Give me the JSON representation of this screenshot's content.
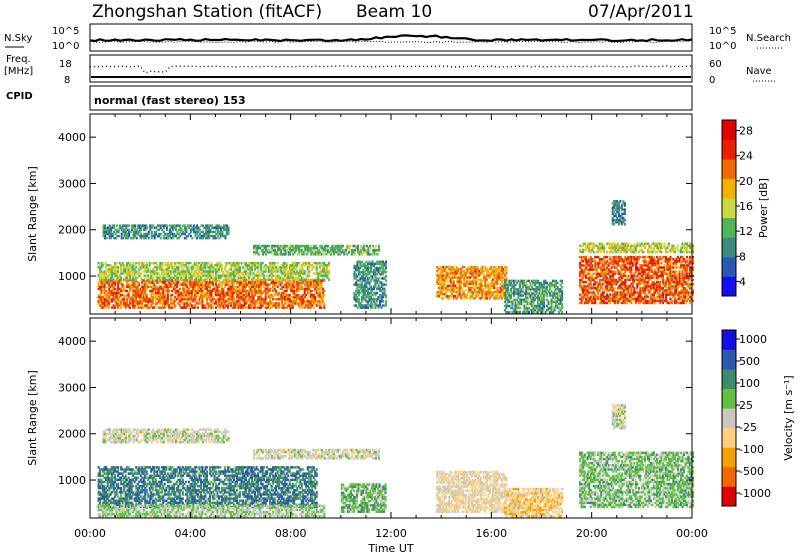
{
  "header": {
    "station": "Zhongshan Station (fitACF)",
    "beam": "Beam 10",
    "date": "07/Apr/2011"
  },
  "top_panels": {
    "nsky_label": "N.Sky",
    "nsearch_label": "N.Search",
    "freq_label_1": "Freq.",
    "freq_label_2": "[MHz]",
    "nave_label": "Nave",
    "cpid_label": "CPID",
    "cpid_text": "normal (fast stereo) 153",
    "count_ticks": [
      "10^5",
      "10^0"
    ],
    "freq_ticks": [
      "18",
      "8"
    ],
    "nave_ticks": [
      "60",
      "0"
    ]
  },
  "chart_data": [
    {
      "type": "heatmap",
      "name": "power",
      "ylabel": "Slant Range [km]",
      "xlabel": "",
      "ylim": [
        180,
        4500
      ],
      "yticks": [
        "1000",
        "2000",
        "3000",
        "4000"
      ],
      "colorbar": {
        "label": "Power [dB]",
        "ticks": [
          "28",
          "24",
          "20",
          "16",
          "12",
          "8",
          "4"
        ],
        "range": [
          0,
          30
        ],
        "colors": [
          "#1010f0",
          "#2a58b0",
          "#3f8a7e",
          "#4fb45a",
          "#c8d840",
          "#f5b000",
          "#f06a00",
          "#e82000",
          "#e00000"
        ]
      },
      "echo_regions": [
        {
          "t0": 0.3,
          "t1": 9.3,
          "r0": 300,
          "r1": 900,
          "level": 22
        },
        {
          "t0": 0.3,
          "t1": 9.5,
          "r0": 900,
          "r1": 1300,
          "level": 14
        },
        {
          "t0": 0.5,
          "t1": 5.5,
          "r0": 1800,
          "r1": 2100,
          "level": 9
        },
        {
          "t0": 6.5,
          "t1": 11.5,
          "r0": 1450,
          "r1": 1650,
          "level": 11
        },
        {
          "t0": 10.5,
          "t1": 11.8,
          "r0": 300,
          "r1": 1300,
          "level": 9
        },
        {
          "t0": 13.8,
          "t1": 16.6,
          "r0": 500,
          "r1": 1200,
          "level": 20
        },
        {
          "t0": 16.5,
          "t1": 18.8,
          "r0": 200,
          "r1": 900,
          "level": 10
        },
        {
          "t0": 19.5,
          "t1": 24.0,
          "r0": 400,
          "r1": 1400,
          "level": 23
        },
        {
          "t0": 19.5,
          "t1": 24.0,
          "r0": 1500,
          "r1": 1700,
          "level": 15
        },
        {
          "t0": 20.8,
          "t1": 21.3,
          "r0": 2100,
          "r1": 2600,
          "level": 8
        }
      ]
    },
    {
      "type": "heatmap",
      "name": "velocity",
      "ylabel": "Slant Range [km]",
      "xlabel": "Time UT",
      "ylim": [
        180,
        4500
      ],
      "yticks": [
        "1000",
        "2000",
        "3000",
        "4000"
      ],
      "xticks": [
        "00:00",
        "04:00",
        "08:00",
        "12:00",
        "16:00",
        "20:00",
        "00:00"
      ],
      "xlim": [
        0,
        24
      ],
      "colorbar": {
        "label": "Velocity [m s⁻¹]",
        "ticks": [
          "1000",
          "500",
          "100",
          "25",
          "-25",
          "-100",
          "-500",
          "-1000"
        ],
        "range": [
          -1200,
          1200
        ],
        "colors": [
          "#e00000",
          "#f06a00",
          "#f5a000",
          "#ffd080",
          "#c8c8c0",
          "#60c040",
          "#3f8a6e",
          "#2a58b0",
          "#1010e0"
        ]
      },
      "echo_regions": [
        {
          "t0": 0.3,
          "t1": 9.0,
          "r0": 400,
          "r1": 1300,
          "level": 600
        },
        {
          "t0": 0.3,
          "t1": 9.3,
          "r0": 200,
          "r1": 450,
          "level": 120
        },
        {
          "t0": 0.5,
          "t1": 5.5,
          "r0": 1800,
          "r1": 2100,
          "level": 0
        },
        {
          "t0": 6.5,
          "t1": 11.5,
          "r0": 1450,
          "r1": 1650,
          "level": -30
        },
        {
          "t0": 10.0,
          "t1": 11.8,
          "r0": 300,
          "r1": 900,
          "level": 300
        },
        {
          "t0": 13.8,
          "t1": 16.6,
          "r0": 300,
          "r1": 1200,
          "level": -150
        },
        {
          "t0": 16.5,
          "t1": 18.8,
          "r0": 200,
          "r1": 800,
          "level": -300
        },
        {
          "t0": 19.5,
          "t1": 24.0,
          "r0": 400,
          "r1": 1600,
          "level": 250
        },
        {
          "t0": 20.8,
          "t1": 21.3,
          "r0": 2100,
          "r1": 2600,
          "level": 10
        }
      ]
    }
  ]
}
